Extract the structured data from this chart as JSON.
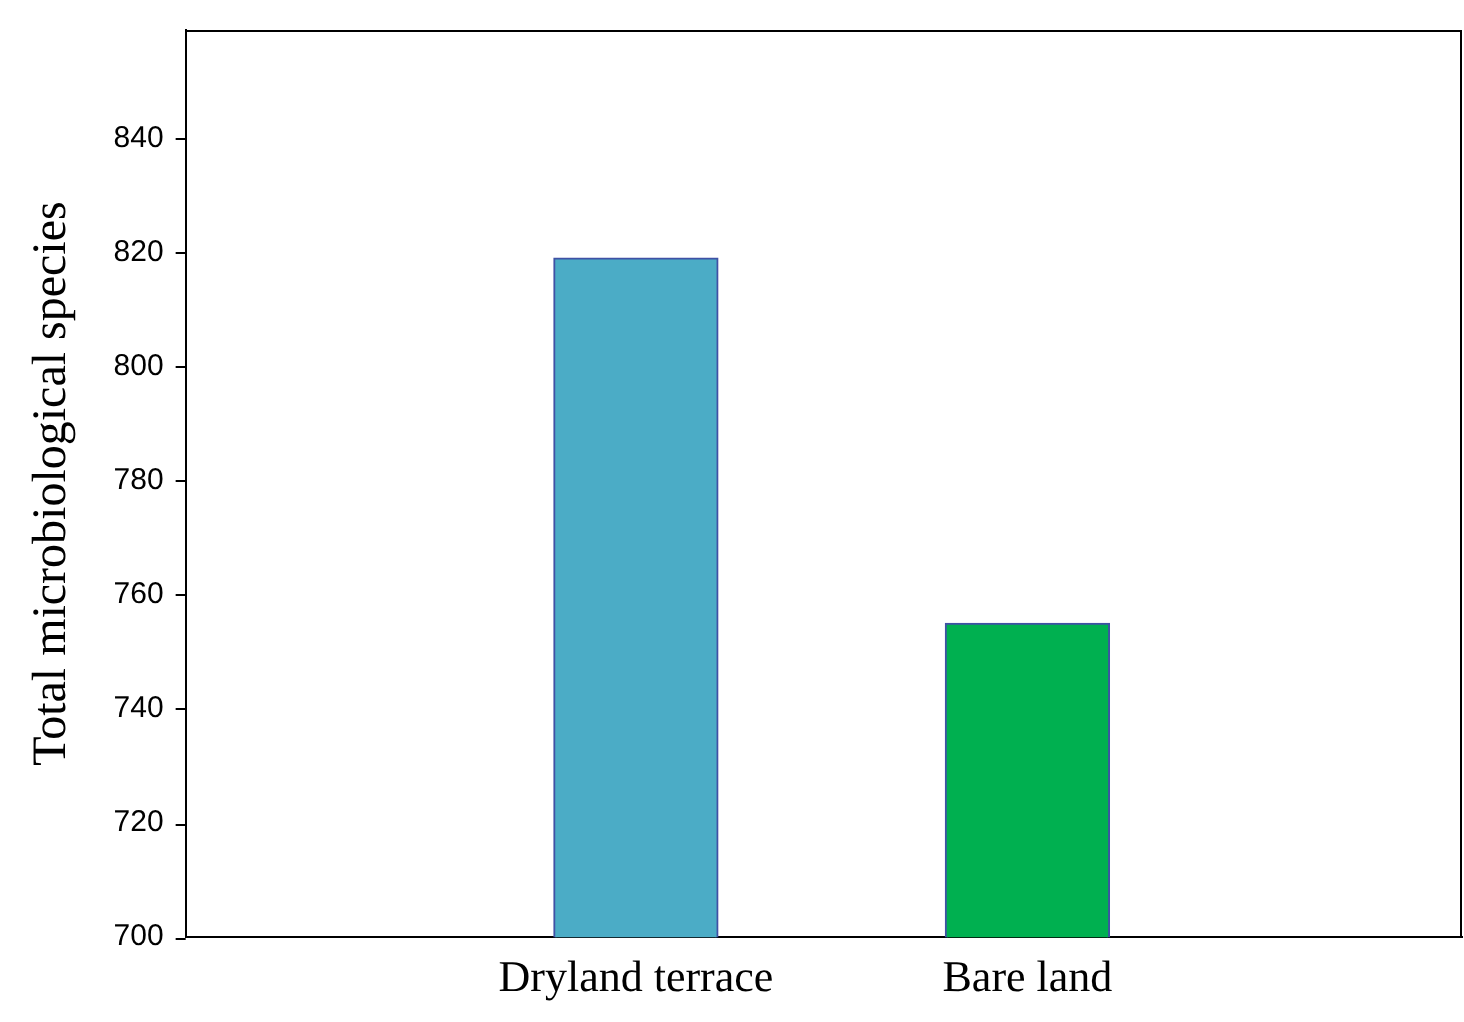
{
  "chart_data": {
    "type": "bar",
    "ylabel": "Total microbiological species",
    "categories": [
      "Dryland terrace",
      "Bare land"
    ],
    "values": [
      819,
      755
    ],
    "colors": [
      "#4bacc6",
      "#00b050"
    ],
    "ylim": [
      700,
      859
    ],
    "yticks": [
      700,
      720,
      740,
      760,
      780,
      800,
      820,
      840
    ],
    "grid": false,
    "legend": false
  }
}
